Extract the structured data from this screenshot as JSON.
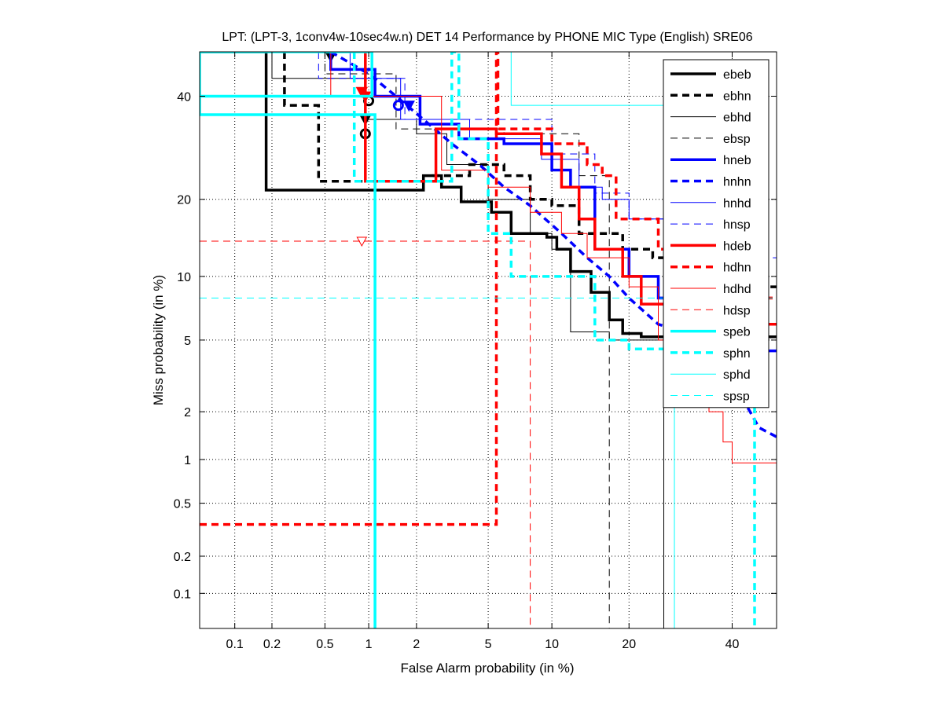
{
  "chart_data": {
    "type": "line",
    "scale": "normal-deviate (DET)",
    "title": "LPT: (LPT-3, 1conv4w-10sec4w.n) DET 14 Performance by PHONE MIC Type (English) SRE06",
    "xlabel": "False Alarm probability (in %)",
    "ylabel": "Miss probability (in %)",
    "xlim": [
      0.05,
      50
    ],
    "ylim": [
      0.05,
      50
    ],
    "grid": true,
    "legend_position": "top-right",
    "xticks": [
      0.1,
      0.2,
      0.5,
      1,
      2,
      5,
      10,
      20,
      40
    ],
    "xtick_labels": [
      "0.1",
      "0.2",
      "0.5",
      "1",
      "2",
      "5",
      "10",
      "20",
      "40"
    ],
    "yticks": [
      0.1,
      0.2,
      0.5,
      1,
      2,
      5,
      10,
      20,
      40
    ],
    "ytick_labels": [
      "0.1",
      "0.2",
      "0.5",
      "1",
      "2",
      "5",
      "10",
      "20",
      "40"
    ],
    "series": [
      {
        "name": "ebeb",
        "color": "#000000",
        "style": "solid",
        "weight": "thick",
        "points": [
          [
            0.05,
            50
          ],
          [
            0.05,
            50
          ],
          [
            0.18,
            50
          ],
          [
            0.18,
            21.5
          ],
          [
            2.2,
            21.5
          ],
          [
            2.2,
            24
          ],
          [
            2.8,
            24
          ],
          [
            2.8,
            22
          ],
          [
            3.6,
            22
          ],
          [
            3.6,
            19.6
          ],
          [
            5.2,
            19.6
          ],
          [
            5.2,
            18
          ],
          [
            6.5,
            18
          ],
          [
            6.5,
            15
          ],
          [
            9.5,
            15
          ],
          [
            9.5,
            14.5
          ],
          [
            10.5,
            14.5
          ],
          [
            10.5,
            13
          ],
          [
            12,
            13
          ],
          [
            12,
            10.5
          ],
          [
            14.5,
            10.5
          ],
          [
            14.5,
            8.5
          ],
          [
            17,
            8.5
          ],
          [
            17,
            6.3
          ],
          [
            19,
            6.3
          ],
          [
            19,
            5.4
          ],
          [
            22,
            5.4
          ],
          [
            22,
            5.2
          ],
          [
            50,
            5.2
          ]
        ],
        "marker": {
          "x": 1.0,
          "y": 39,
          "symbol": "o"
        }
      },
      {
        "name": "ebhn",
        "color": "#000000",
        "style": "dashed",
        "weight": "thick",
        "points": [
          [
            0.25,
            50
          ],
          [
            0.25,
            38
          ],
          [
            0.45,
            38
          ],
          [
            0.45,
            23
          ],
          [
            2.5,
            23
          ],
          [
            2.5,
            24
          ],
          [
            4,
            24
          ],
          [
            4,
            26
          ],
          [
            6,
            26
          ],
          [
            6,
            24
          ],
          [
            8,
            24
          ],
          [
            8,
            20
          ],
          [
            10,
            20
          ],
          [
            10,
            19
          ],
          [
            13,
            19
          ],
          [
            13,
            15
          ],
          [
            19,
            15
          ],
          [
            19,
            13
          ],
          [
            24,
            13
          ],
          [
            24,
            12
          ],
          [
            30,
            12
          ],
          [
            30,
            9
          ],
          [
            50,
            9
          ]
        ],
        "marker": {
          "x": 0.55,
          "y": 49,
          "symbol": "v"
        }
      },
      {
        "name": "ebhd",
        "color": "#000000",
        "style": "solid",
        "weight": "thin",
        "points": [
          [
            0.2,
            50
          ],
          [
            0.2,
            44
          ],
          [
            0.95,
            44
          ],
          [
            0.95,
            35
          ],
          [
            2,
            35
          ],
          [
            2,
            32
          ],
          [
            3,
            32
          ],
          [
            3,
            26
          ],
          [
            5,
            26
          ],
          [
            5,
            20
          ],
          [
            8,
            20
          ],
          [
            8,
            15
          ],
          [
            10,
            15
          ],
          [
            10,
            13
          ],
          [
            12,
            13
          ],
          [
            12,
            5.5
          ],
          [
            17,
            5.5
          ],
          [
            17,
            5
          ],
          [
            26,
            5
          ],
          [
            26,
            0.05
          ]
        ],
        "marker": {
          "x": 0.95,
          "y": 35,
          "symbol": "v"
        }
      },
      {
        "name": "ebsp",
        "color": "#000000",
        "style": "dashed",
        "weight": "thin",
        "points": [
          [
            0.5,
            50
          ],
          [
            0.5,
            45
          ],
          [
            1.5,
            45
          ],
          [
            1.5,
            33
          ],
          [
            6,
            33
          ],
          [
            6,
            32
          ],
          [
            13,
            32
          ],
          [
            13,
            24
          ],
          [
            17,
            24
          ],
          [
            17,
            0.05
          ]
        ],
        "marker": {
          "x": 0.95,
          "y": 32,
          "symbol": "o"
        }
      },
      {
        "name": "hneb",
        "color": "#0000ff",
        "style": "solid",
        "weight": "thick",
        "points": [
          [
            0.55,
            50
          ],
          [
            0.55,
            46
          ],
          [
            1.1,
            46
          ],
          [
            1.1,
            40
          ],
          [
            2.1,
            40
          ],
          [
            2.1,
            34
          ],
          [
            3.5,
            34
          ],
          [
            3.5,
            31
          ],
          [
            6,
            31
          ],
          [
            6,
            30
          ],
          [
            10,
            30
          ],
          [
            10,
            25
          ],
          [
            12,
            25
          ],
          [
            12,
            22
          ],
          [
            15,
            22
          ],
          [
            15,
            13
          ],
          [
            20,
            13
          ],
          [
            20,
            10
          ],
          [
            25,
            10
          ],
          [
            25,
            8
          ],
          [
            35,
            8
          ],
          [
            35,
            6
          ],
          [
            42,
            6
          ],
          [
            42,
            4.4
          ],
          [
            50,
            4.4
          ]
        ],
        "marker": {
          "x": 1.55,
          "y": 38,
          "symbol": "o"
        }
      },
      {
        "name": "hnhn",
        "color": "#0000ff",
        "style": "dashed",
        "weight": "thick",
        "points": [
          [
            0.55,
            50
          ],
          [
            1,
            45
          ],
          [
            1.5,
            40
          ],
          [
            2.2,
            35
          ],
          [
            3.2,
            30
          ],
          [
            4.5,
            26
          ],
          [
            6,
            22
          ],
          [
            8,
            19
          ],
          [
            11,
            15
          ],
          [
            14,
            12
          ],
          [
            17,
            10
          ],
          [
            20,
            8
          ],
          [
            25,
            6
          ],
          [
            30,
            5.5
          ],
          [
            40,
            3
          ],
          [
            44,
            2
          ],
          [
            46,
            1.6
          ],
          [
            50,
            1.4
          ]
        ],
        "marker": {
          "x": 1.8,
          "y": 38,
          "symbol": "v"
        }
      },
      {
        "name": "hnhd",
        "color": "#0000ff",
        "style": "solid",
        "weight": "thin",
        "points": [
          [
            0.75,
            50
          ],
          [
            0.75,
            44
          ],
          [
            1.6,
            44
          ],
          [
            1.6,
            35
          ],
          [
            4,
            35
          ],
          [
            4,
            31
          ],
          [
            9,
            31
          ],
          [
            9,
            27
          ],
          [
            13,
            27
          ],
          [
            13,
            22
          ],
          [
            16,
            22
          ],
          [
            16,
            20
          ],
          [
            20,
            20
          ],
          [
            20,
            17
          ],
          [
            30,
            17
          ],
          [
            30,
            10
          ],
          [
            40,
            10
          ],
          [
            40,
            6
          ],
          [
            50,
            6
          ]
        ]
      },
      {
        "name": "hnsp",
        "color": "#0000ff",
        "style": "dashed",
        "weight": "thin",
        "points": [
          [
            0.45,
            50
          ],
          [
            0.45,
            44
          ],
          [
            1.7,
            44
          ],
          [
            1.7,
            35
          ],
          [
            10,
            35
          ],
          [
            10,
            28
          ],
          [
            15,
            28
          ],
          [
            15,
            21
          ],
          [
            20,
            21
          ],
          [
            20,
            17
          ],
          [
            30,
            17
          ],
          [
            30,
            12
          ],
          [
            50,
            12
          ]
        ]
      },
      {
        "name": "hdeb",
        "color": "#ff0000",
        "style": "solid",
        "weight": "thick",
        "points": [
          [
            0.95,
            50
          ],
          [
            0.95,
            23
          ],
          [
            2.6,
            23
          ],
          [
            2.6,
            33
          ],
          [
            5.5,
            33
          ],
          [
            5.5,
            32
          ],
          [
            9,
            32
          ],
          [
            9,
            28
          ],
          [
            11,
            28
          ],
          [
            11,
            22
          ],
          [
            13,
            22
          ],
          [
            13,
            17
          ],
          [
            15,
            17
          ],
          [
            15,
            13
          ],
          [
            19,
            13
          ],
          [
            19,
            10
          ],
          [
            22,
            10
          ],
          [
            22,
            7.5
          ],
          [
            30,
            7.5
          ],
          [
            30,
            6
          ],
          [
            50,
            6
          ]
        ],
        "marker": {
          "x": 0.9,
          "y": 41,
          "symbol": "v"
        }
      },
      {
        "name": "hdhn",
        "color": "#ff0000",
        "style": "dashed",
        "weight": "thick",
        "points": [
          [
            0.05,
            0.35
          ],
          [
            5.5,
            0.35
          ],
          [
            5.5,
            50
          ],
          [
            5.6,
            50
          ],
          [
            5.6,
            33
          ],
          [
            10,
            33
          ],
          [
            10,
            30
          ],
          [
            14,
            30
          ],
          [
            14,
            26
          ],
          [
            16,
            26
          ],
          [
            16,
            24
          ],
          [
            18,
            24
          ],
          [
            18,
            17
          ],
          [
            25,
            17
          ],
          [
            25,
            13
          ],
          [
            30,
            13
          ],
          [
            30,
            10
          ],
          [
            40,
            10
          ],
          [
            40,
            8
          ],
          [
            50,
            8
          ]
        ],
        "marker": {
          "x": 0.95,
          "y": 40,
          "symbol": "v"
        }
      },
      {
        "name": "hdhd",
        "color": "#ff0000",
        "style": "solid",
        "weight": "thin",
        "points": [
          [
            0.55,
            50
          ],
          [
            0.55,
            40
          ],
          [
            2.8,
            40
          ],
          [
            2.8,
            25
          ],
          [
            5,
            25
          ],
          [
            5,
            22
          ],
          [
            8,
            22
          ],
          [
            8,
            18
          ],
          [
            11,
            18
          ],
          [
            11,
            15
          ],
          [
            14,
            15
          ],
          [
            14,
            12
          ],
          [
            20,
            12
          ],
          [
            20,
            9
          ],
          [
            25,
            9
          ],
          [
            25,
            5
          ],
          [
            35,
            5
          ],
          [
            35,
            2
          ],
          [
            38,
            2
          ],
          [
            38,
            1.3
          ],
          [
            40,
            1.3
          ],
          [
            40,
            0.95
          ],
          [
            50,
            0.95
          ]
        ]
      },
      {
        "name": "hdsp",
        "color": "#ff0000",
        "style": "dashed",
        "weight": "thin",
        "points": [
          [
            0.05,
            14
          ],
          [
            8,
            14
          ],
          [
            8,
            0.05
          ]
        ],
        "marker": {
          "x": 0.9,
          "y": 14,
          "symbol": "v-open"
        }
      },
      {
        "name": "speb",
        "color": "#00ffff",
        "style": "solid",
        "weight": "thick",
        "points": [
          [
            0.05,
            40
          ],
          [
            1.05,
            40
          ],
          [
            1.05,
            50
          ],
          [
            0.05,
            50
          ],
          [
            0.05,
            36
          ],
          [
            1.1,
            36
          ],
          [
            1.1,
            0.05
          ]
        ]
      },
      {
        "name": "sphn",
        "color": "#00ffff",
        "style": "dashed",
        "weight": "thick",
        "points": [
          [
            0.8,
            50
          ],
          [
            0.8,
            23
          ],
          [
            3.2,
            23
          ],
          [
            3.2,
            50
          ],
          [
            3.5,
            50
          ],
          [
            3.5,
            31
          ],
          [
            5,
            31
          ],
          [
            5,
            15
          ],
          [
            6.5,
            15
          ],
          [
            6.5,
            10
          ],
          [
            15,
            10
          ],
          [
            15,
            5
          ],
          [
            20,
            5
          ],
          [
            20,
            4.5
          ],
          [
            45,
            4.5
          ],
          [
            45,
            0.05
          ]
        ]
      },
      {
        "name": "sphd",
        "color": "#00ffff",
        "style": "solid",
        "weight": "thin",
        "points": [
          [
            6.5,
            50
          ],
          [
            6.5,
            38
          ],
          [
            28,
            38
          ],
          [
            28,
            0.05
          ]
        ]
      },
      {
        "name": "spsp",
        "color": "#00ffff",
        "style": "dashed",
        "weight": "thin",
        "points": [
          [
            0.05,
            8
          ],
          [
            50,
            8
          ]
        ]
      }
    ]
  }
}
